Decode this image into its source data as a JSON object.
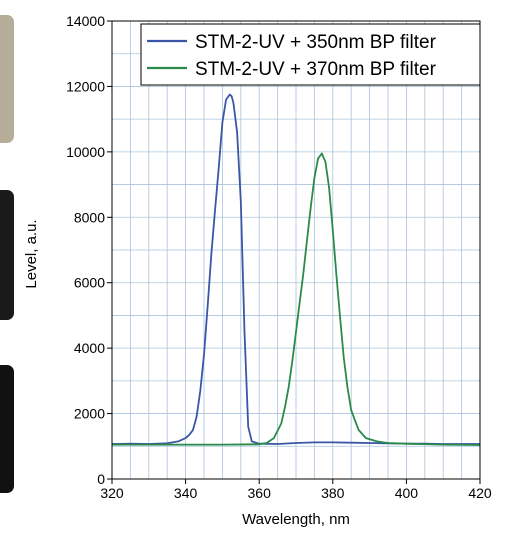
{
  "chart_data": {
    "type": "line",
    "title": "",
    "xlabel": "Wavelength, nm",
    "ylabel": "Level, a.u.",
    "xlim": [
      320,
      420
    ],
    "ylim": [
      0,
      14000
    ],
    "xticks": [
      320,
      340,
      360,
      380,
      400,
      420
    ],
    "yticks": [
      0,
      2000,
      4000,
      6000,
      8000,
      10000,
      12000,
      14000
    ],
    "x_minor_step": 5,
    "y_minor_step": 1000,
    "grid": true,
    "legend_position": "top-right",
    "series": [
      {
        "name": "STM-2-UV + 350nm BP filter",
        "color": "#3a56a6",
        "x": [
          320,
          325,
          330,
          335,
          338,
          340,
          341,
          342,
          343,
          344,
          345,
          346,
          347,
          348,
          349,
          350,
          351,
          352,
          352.5,
          353,
          354,
          355,
          356,
          357,
          358,
          360,
          365,
          370,
          375,
          380,
          385,
          390,
          395,
          400,
          405,
          410,
          415,
          420
        ],
        "y": [
          1070,
          1080,
          1070,
          1090,
          1150,
          1250,
          1350,
          1500,
          1900,
          2700,
          3800,
          5300,
          6900,
          8200,
          9500,
          10900,
          11600,
          11750,
          11700,
          11500,
          10600,
          8500,
          4500,
          1600,
          1150,
          1080,
          1070,
          1100,
          1120,
          1120,
          1110,
          1100,
          1090,
          1080,
          1080,
          1070,
          1070,
          1070
        ]
      },
      {
        "name": "STM-2-UV + 370nm BP filter",
        "color": "#2a8a4a",
        "x": [
          320,
          330,
          340,
          350,
          360,
          362,
          364,
          366,
          367,
          368,
          369,
          370,
          371,
          372,
          373,
          374,
          375,
          376,
          377,
          378,
          379,
          380,
          381,
          382,
          383,
          384,
          385,
          387,
          389,
          392,
          395,
          400,
          410,
          420
        ],
        "y": [
          1050,
          1050,
          1050,
          1050,
          1060,
          1100,
          1250,
          1700,
          2200,
          2800,
          3600,
          4500,
          5400,
          6300,
          7300,
          8300,
          9200,
          9800,
          9950,
          9700,
          8900,
          7600,
          6200,
          4900,
          3700,
          2800,
          2100,
          1500,
          1250,
          1150,
          1100,
          1080,
          1050,
          1040
        ]
      }
    ]
  }
}
